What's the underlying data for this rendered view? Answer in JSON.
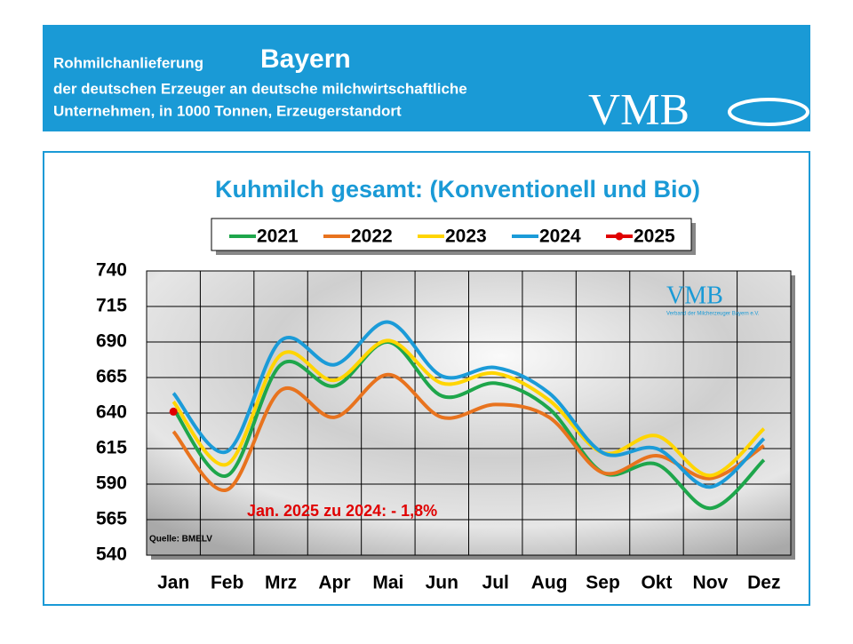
{
  "header": {
    "title_prefix": "Rohmilchanlieferung",
    "title_region": "Bayern",
    "line2": "der deutschen Erzeuger an deutsche milchwirtschaftliche",
    "line3": "Unternehmen, in 1000 Tonnen, Erzeugerstandort",
    "logo": "VMB"
  },
  "chart_data": {
    "type": "line",
    "title": "Kuhmilch gesamt: (Konventionell und Bio)",
    "categories": [
      "Jan",
      "Feb",
      "Mrz",
      "Apr",
      "Mai",
      "Jun",
      "Jul",
      "Aug",
      "Sep",
      "Okt",
      "Nov",
      "Dez"
    ],
    "series": [
      {
        "name": "2021",
        "color": "#1ea64b",
        "values": [
          643,
          596,
          674,
          659,
          690,
          652,
          661,
          643,
          598,
          604,
          573,
          607
        ]
      },
      {
        "name": "2022",
        "color": "#e8731e",
        "values": [
          627,
          586,
          656,
          637,
          667,
          637,
          646,
          637,
          598,
          610,
          594,
          617
        ]
      },
      {
        "name": "2023",
        "color": "#ffd500",
        "values": [
          648,
          604,
          681,
          663,
          691,
          661,
          668,
          649,
          612,
          624,
          596,
          629
        ]
      },
      {
        "name": "2024",
        "color": "#1b9bd8",
        "values": [
          654,
          613,
          691,
          674,
          704,
          666,
          672,
          654,
          612,
          615,
          588,
          622
        ]
      },
      {
        "name": "2025",
        "color": "#e00000",
        "values": [
          641,
          null,
          null,
          null,
          null,
          null,
          null,
          null,
          null,
          null,
          null,
          null
        ]
      }
    ],
    "ylim": [
      540,
      740
    ],
    "yticks": [
      540,
      565,
      590,
      615,
      640,
      665,
      690,
      715,
      740
    ],
    "grid": true,
    "annotation": "Jan. 2025 zu 2024: - 1,8%",
    "source": "Quelle:  BMELV",
    "watermark": "VMB",
    "watermark_sub": "Verband der Milcherzeuger Bayern e.V."
  }
}
